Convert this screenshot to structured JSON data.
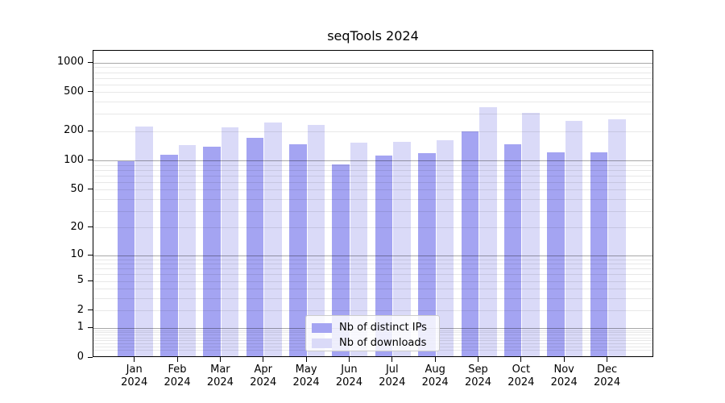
{
  "chart_data": {
    "type": "bar",
    "title": "seqTools 2024",
    "y_scale": "log10(1+x)",
    "categories": [
      "Jan 2024",
      "Feb 2024",
      "Mar 2024",
      "Apr 2024",
      "May 2024",
      "Jun 2024",
      "Jul 2024",
      "Aug 2024",
      "Sep 2024",
      "Oct 2024",
      "Nov 2024",
      "Dec 2024"
    ],
    "series": [
      {
        "key": "ips",
        "name": "Nb of distinct IPs",
        "color": "#a4a4f2",
        "values": [
          95,
          111,
          136,
          166,
          144,
          88,
          110,
          116,
          193,
          144,
          117,
          118
        ]
      },
      {
        "key": "downloads",
        "name": "Nb of downloads",
        "color": "#dadaf8",
        "values": [
          216,
          139,
          214,
          240,
          226,
          148,
          150,
          158,
          340,
          300,
          249,
          257
        ]
      }
    ],
    "y_ticks": [
      0,
      1,
      2,
      5,
      10,
      20,
      50,
      100,
      200,
      500,
      1000
    ],
    "ylim": [
      0,
      1335
    ],
    "grid": true,
    "legend_position": "lower center"
  },
  "colors": {
    "axis": "#000000",
    "grid_decade": "rgba(0,0,0,0.34)",
    "grid_faint": "rgba(0,0,0,0.09)",
    "legend_border": "#cccccc",
    "background": "#ffffff"
  }
}
